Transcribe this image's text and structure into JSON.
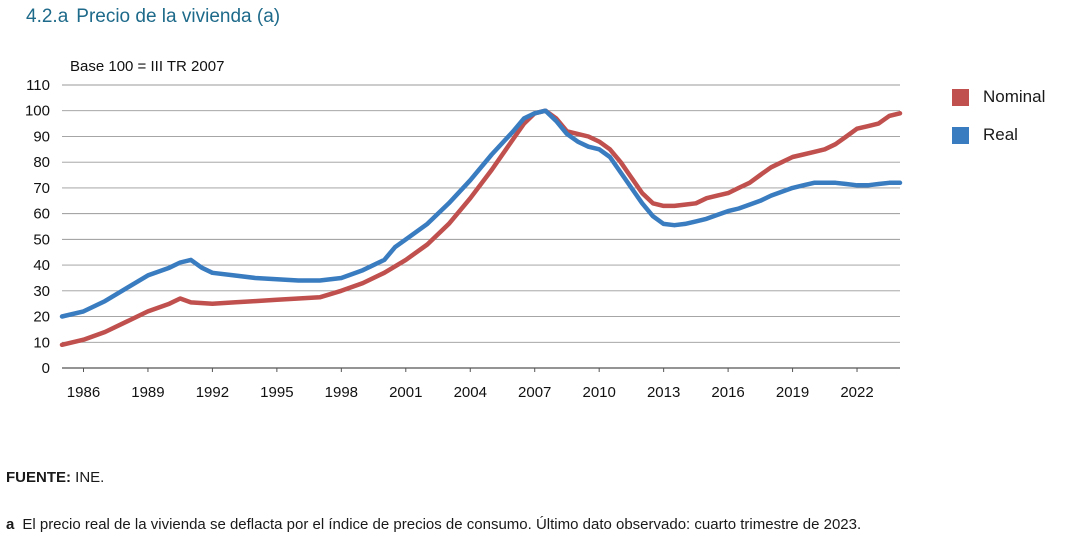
{
  "header": {
    "number": "4.2.a",
    "title": "Precio de la vivienda (a)"
  },
  "chart_data": {
    "type": "line",
    "ylabel": "Base 100 = III TR 2007",
    "ylim": [
      0,
      110
    ],
    "yticks": [
      0,
      10,
      20,
      30,
      40,
      50,
      60,
      70,
      80,
      90,
      100,
      110
    ],
    "xlim": [
      1985.0,
      2024.0
    ],
    "xticks": [
      "1986",
      "1989",
      "1992",
      "1995",
      "1998",
      "2001",
      "2004",
      "2007",
      "2010",
      "2013",
      "2016",
      "2019",
      "2022"
    ],
    "grid": true,
    "legend_position": "right",
    "series": [
      {
        "name": "Nominal",
        "color": "#c0504d",
        "points": [
          [
            1985.0,
            9
          ],
          [
            1986.0,
            11
          ],
          [
            1987.0,
            14
          ],
          [
            1988.0,
            18
          ],
          [
            1989.0,
            22
          ],
          [
            1990.0,
            25
          ],
          [
            1990.5,
            27
          ],
          [
            1991.0,
            25.5
          ],
          [
            1992.0,
            25
          ],
          [
            1993.0,
            25.5
          ],
          [
            1994.0,
            26
          ],
          [
            1995.0,
            26.5
          ],
          [
            1996.0,
            27
          ],
          [
            1997.0,
            27.5
          ],
          [
            1998.0,
            30
          ],
          [
            1999.0,
            33
          ],
          [
            2000.0,
            37
          ],
          [
            2001.0,
            42
          ],
          [
            2002.0,
            48
          ],
          [
            2003.0,
            56
          ],
          [
            2004.0,
            66
          ],
          [
            2005.0,
            77
          ],
          [
            2006.0,
            89
          ],
          [
            2006.5,
            95
          ],
          [
            2007.0,
            99
          ],
          [
            2007.5,
            100
          ],
          [
            2008.0,
            97
          ],
          [
            2008.5,
            92
          ],
          [
            2009.0,
            91
          ],
          [
            2009.5,
            90
          ],
          [
            2010.0,
            88
          ],
          [
            2010.5,
            85
          ],
          [
            2011.0,
            80
          ],
          [
            2011.5,
            74
          ],
          [
            2012.0,
            68
          ],
          [
            2012.5,
            64
          ],
          [
            2013.0,
            63
          ],
          [
            2013.5,
            63
          ],
          [
            2014.0,
            63.5
          ],
          [
            2014.5,
            64
          ],
          [
            2015.0,
            66
          ],
          [
            2015.5,
            67
          ],
          [
            2016.0,
            68
          ],
          [
            2016.5,
            70
          ],
          [
            2017.0,
            72
          ],
          [
            2017.5,
            75
          ],
          [
            2018.0,
            78
          ],
          [
            2018.5,
            80
          ],
          [
            2019.0,
            82
          ],
          [
            2019.5,
            83
          ],
          [
            2020.0,
            84
          ],
          [
            2020.5,
            85
          ],
          [
            2021.0,
            87
          ],
          [
            2021.5,
            90
          ],
          [
            2022.0,
            93
          ],
          [
            2022.5,
            94
          ],
          [
            2023.0,
            95
          ],
          [
            2023.5,
            98
          ],
          [
            2024.0,
            99
          ]
        ]
      },
      {
        "name": "Real",
        "color": "#3a7cc0",
        "points": [
          [
            1985.0,
            20
          ],
          [
            1986.0,
            22
          ],
          [
            1987.0,
            26
          ],
          [
            1988.0,
            31
          ],
          [
            1989.0,
            36
          ],
          [
            1990.0,
            39
          ],
          [
            1990.5,
            41
          ],
          [
            1991.0,
            42
          ],
          [
            1991.5,
            39
          ],
          [
            1992.0,
            37
          ],
          [
            1993.0,
            36
          ],
          [
            1994.0,
            35
          ],
          [
            1995.0,
            34.5
          ],
          [
            1996.0,
            34
          ],
          [
            1997.0,
            34
          ],
          [
            1998.0,
            35
          ],
          [
            1999.0,
            38
          ],
          [
            2000.0,
            42
          ],
          [
            2000.5,
            47
          ],
          [
            2001.0,
            50
          ],
          [
            2002.0,
            56
          ],
          [
            2003.0,
            64
          ],
          [
            2004.0,
            73
          ],
          [
            2005.0,
            83
          ],
          [
            2006.0,
            92
          ],
          [
            2006.5,
            97
          ],
          [
            2007.0,
            99
          ],
          [
            2007.5,
            100
          ],
          [
            2008.0,
            96
          ],
          [
            2008.5,
            91
          ],
          [
            2009.0,
            88
          ],
          [
            2009.5,
            86
          ],
          [
            2010.0,
            85
          ],
          [
            2010.5,
            82
          ],
          [
            2011.0,
            76
          ],
          [
            2011.5,
            70
          ],
          [
            2012.0,
            64
          ],
          [
            2012.5,
            59
          ],
          [
            2013.0,
            56
          ],
          [
            2013.5,
            55.5
          ],
          [
            2014.0,
            56
          ],
          [
            2014.5,
            57
          ],
          [
            2015.0,
            58
          ],
          [
            2015.5,
            59.5
          ],
          [
            2016.0,
            61
          ],
          [
            2016.5,
            62
          ],
          [
            2017.0,
            63.5
          ],
          [
            2017.5,
            65
          ],
          [
            2018.0,
            67
          ],
          [
            2018.5,
            68.5
          ],
          [
            2019.0,
            70
          ],
          [
            2019.5,
            71
          ],
          [
            2020.0,
            72
          ],
          [
            2020.5,
            72
          ],
          [
            2021.0,
            72
          ],
          [
            2021.5,
            71.5
          ],
          [
            2022.0,
            71
          ],
          [
            2022.5,
            71
          ],
          [
            2023.0,
            71.5
          ],
          [
            2023.5,
            72
          ],
          [
            2024.0,
            72
          ]
        ]
      }
    ]
  },
  "footer": {
    "source_label": "FUENTE:",
    "source_text": " INE.",
    "note_label": "a",
    "note_text": "El precio real de la vivienda se deflacta por el índice de precios de consumo. Último dato observado: cuarto trimestre de 2023."
  }
}
